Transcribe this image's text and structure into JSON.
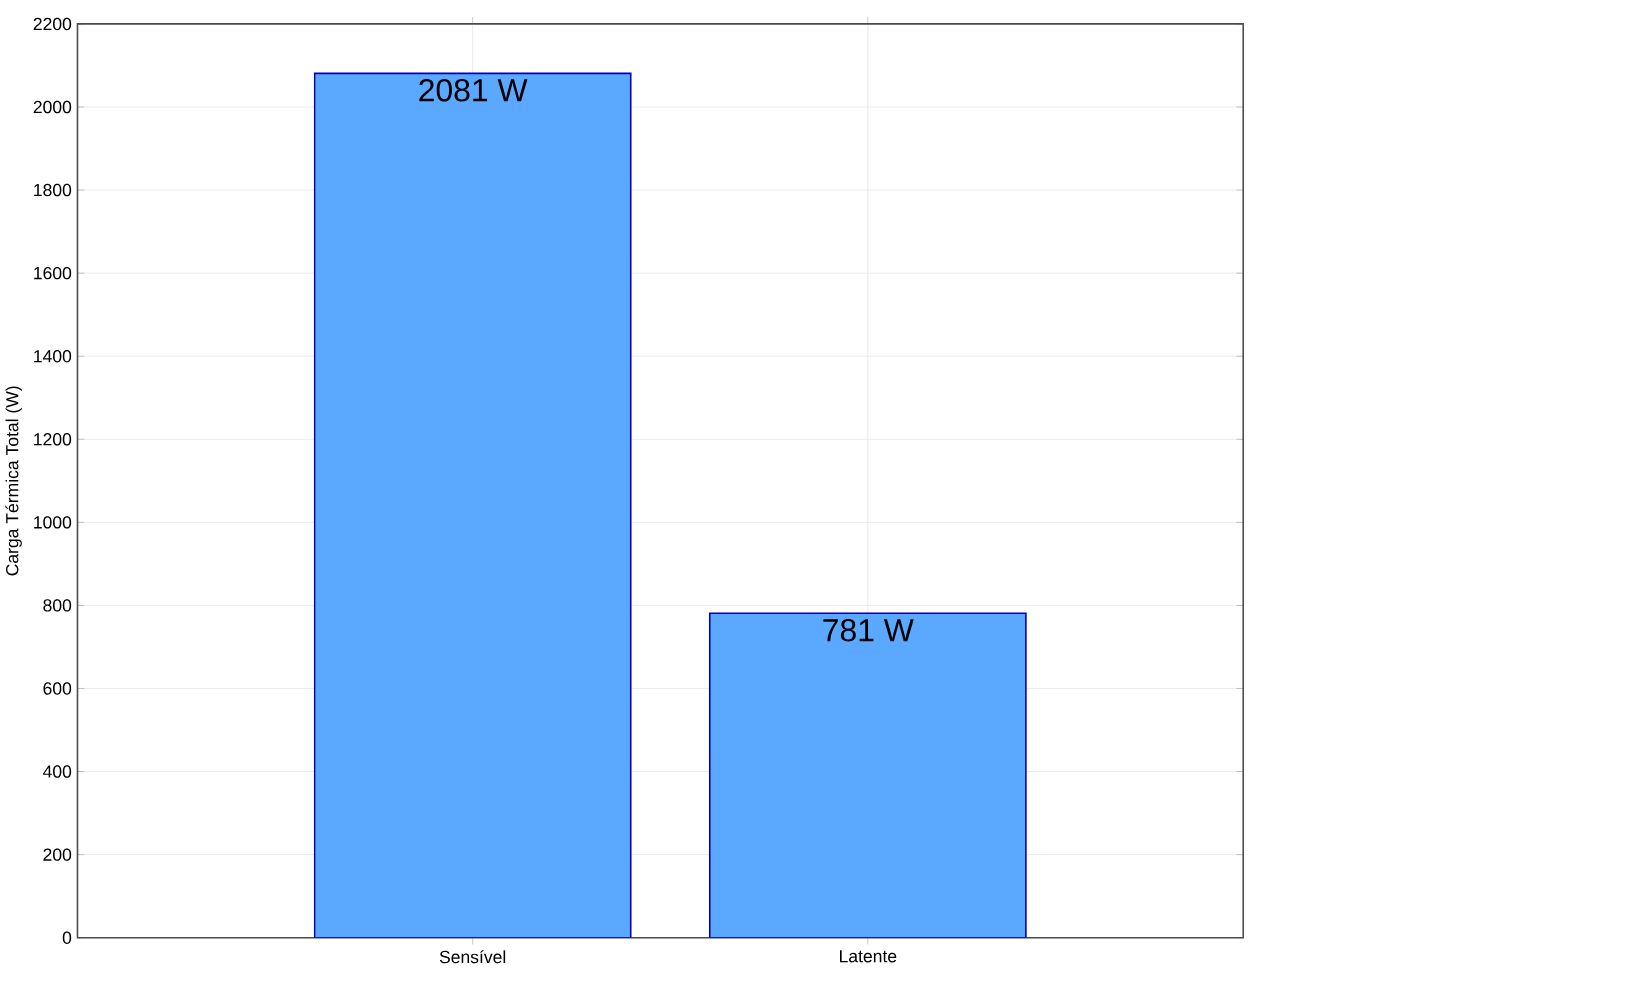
{
  "chart_data": {
    "type": "bar",
    "ylabel": "Carga Térmica Total (W)",
    "categories": [
      "Sensível",
      "Latente"
    ],
    "values": [
      2081,
      781
    ],
    "value_labels": [
      "2081 W",
      "781 W"
    ],
    "color": "#5aa8ff",
    "ylim": [
      0,
      2200
    ],
    "yticks": [
      0,
      200,
      400,
      600,
      800,
      1000,
      1200,
      1400,
      1600,
      1800,
      2000,
      2200
    ],
    "grid": true
  }
}
